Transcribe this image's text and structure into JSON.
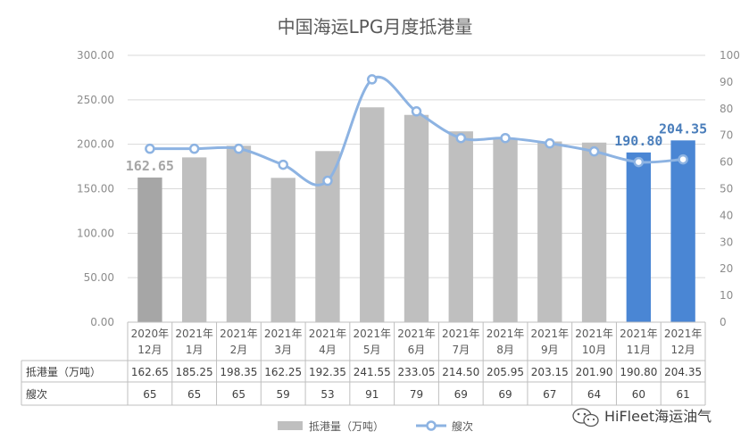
{
  "chart_data": {
    "type": "bar",
    "title": "中国海运LPG月度抵港量",
    "categories": [
      [
        "2020年",
        "12月"
      ],
      [
        "2021年",
        "1月"
      ],
      [
        "2021年",
        "2月"
      ],
      [
        "2021年",
        "3月"
      ],
      [
        "2021年",
        "4月"
      ],
      [
        "2021年",
        "5月"
      ],
      [
        "2021年",
        "6月"
      ],
      [
        "2021年",
        "7月"
      ],
      [
        "2021年",
        "8月"
      ],
      [
        "2021年",
        "9月"
      ],
      [
        "2021年",
        "10月"
      ],
      [
        "2021年",
        "11月"
      ],
      [
        "2021年",
        "12月"
      ]
    ],
    "series": [
      {
        "name": "抵港量（万吨）",
        "type": "bar",
        "axis": "left",
        "values": [
          162.65,
          185.25,
          198.35,
          162.25,
          192.35,
          241.55,
          233.05,
          214.5,
          205.95,
          203.15,
          201.9,
          190.8,
          204.35
        ],
        "display": [
          "162.65",
          "185.25",
          "198.35",
          "162.25",
          "192.35",
          "241.55",
          "233.05",
          "214.50",
          "205.95",
          "203.15",
          "201.90",
          "190.80",
          "204.35"
        ]
      },
      {
        "name": "艘次",
        "type": "line",
        "axis": "right",
        "smooth": true,
        "values": [
          65,
          65,
          65,
          59,
          53,
          91,
          79,
          69,
          69,
          67,
          64,
          60,
          61
        ],
        "display": [
          "65",
          "65",
          "65",
          "59",
          "53",
          "91",
          "79",
          "69",
          "69",
          "67",
          "64",
          "60",
          "61"
        ]
      }
    ],
    "left_axis": {
      "min": 0,
      "max": 300,
      "step": 50,
      "ticks": [
        "0.00",
        "50.00",
        "100.00",
        "150.00",
        "200.00",
        "250.00",
        "300.00"
      ]
    },
    "right_axis": {
      "min": 0,
      "max": 100,
      "step": 10,
      "ticks": [
        "0",
        "10",
        "20",
        "30",
        "40",
        "50",
        "60",
        "70",
        "80",
        "90",
        "100"
      ]
    },
    "data_labels": [
      {
        "index": 0,
        "text": "162.65",
        "color": "#a6a6a6"
      },
      {
        "index": 11,
        "text": "190.80",
        "color": "#4a7ebb"
      },
      {
        "index": 12,
        "text": "204.35",
        "color": "#4a7ebb"
      }
    ],
    "colors": {
      "bar_default": "#bfbfbf",
      "bar_first": "#a6a6a6",
      "bar_highlight": "#4a86d4",
      "line": "#8db3e2",
      "gridline": "#d9d9d9",
      "table_border": "#bfbfbf"
    },
    "highlight_indices": [
      11,
      12
    ],
    "first_index": 0,
    "grid": true,
    "data_table": true,
    "legend_position": "bottom"
  },
  "watermark": "HiFleet海运油气",
  "watermark_icon": "wechat-icon"
}
